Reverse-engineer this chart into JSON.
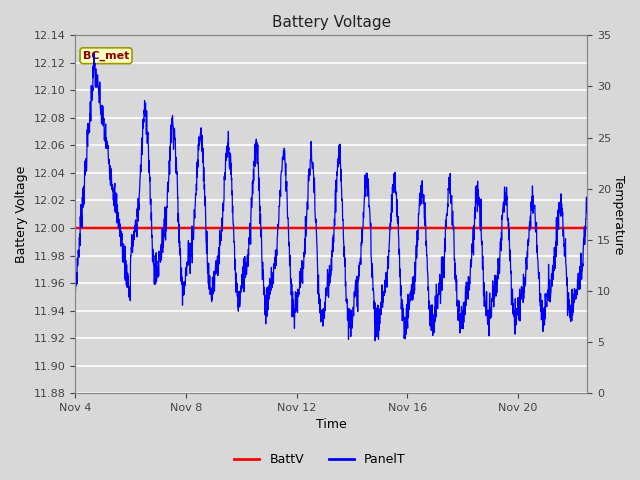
{
  "title": "Battery Voltage",
  "xlabel": "Time",
  "ylabel_left": "Battery Voltage",
  "ylabel_right": "Temperature",
  "ylim_left": [
    11.88,
    12.14
  ],
  "ylim_right": [
    0,
    35
  ],
  "yticks_left": [
    11.88,
    11.9,
    11.92,
    11.94,
    11.96,
    11.98,
    12.0,
    12.02,
    12.04,
    12.06,
    12.08,
    12.1,
    12.12,
    12.14
  ],
  "yticks_right": [
    0,
    5,
    10,
    15,
    20,
    25,
    30,
    35
  ],
  "xtick_labels": [
    "Nov 4",
    "Nov 8",
    "Nov 12",
    "Nov 16",
    "Nov 20"
  ],
  "xtick_positions": [
    0,
    4,
    8,
    12,
    16
  ],
  "xlim": [
    0,
    18.5
  ],
  "batt_v": 12.0,
  "annotation_text": "BC_met",
  "annotation_text_color": "#8B0000",
  "annotation_bg_color": "#FFFFC0",
  "annotation_border_color": "#999900",
  "bg_color": "#D8D8D8",
  "plot_bg_color": "#D8D8D8",
  "grid_color": "#FFFFFF",
  "line_color_batt": "#FF0000",
  "line_color_panel": "#0000FF",
  "legend_label_batt": "BattV",
  "legend_label_panel": "PanelT",
  "title_fontsize": 11,
  "axis_label_fontsize": 9,
  "tick_label_fontsize": 8
}
